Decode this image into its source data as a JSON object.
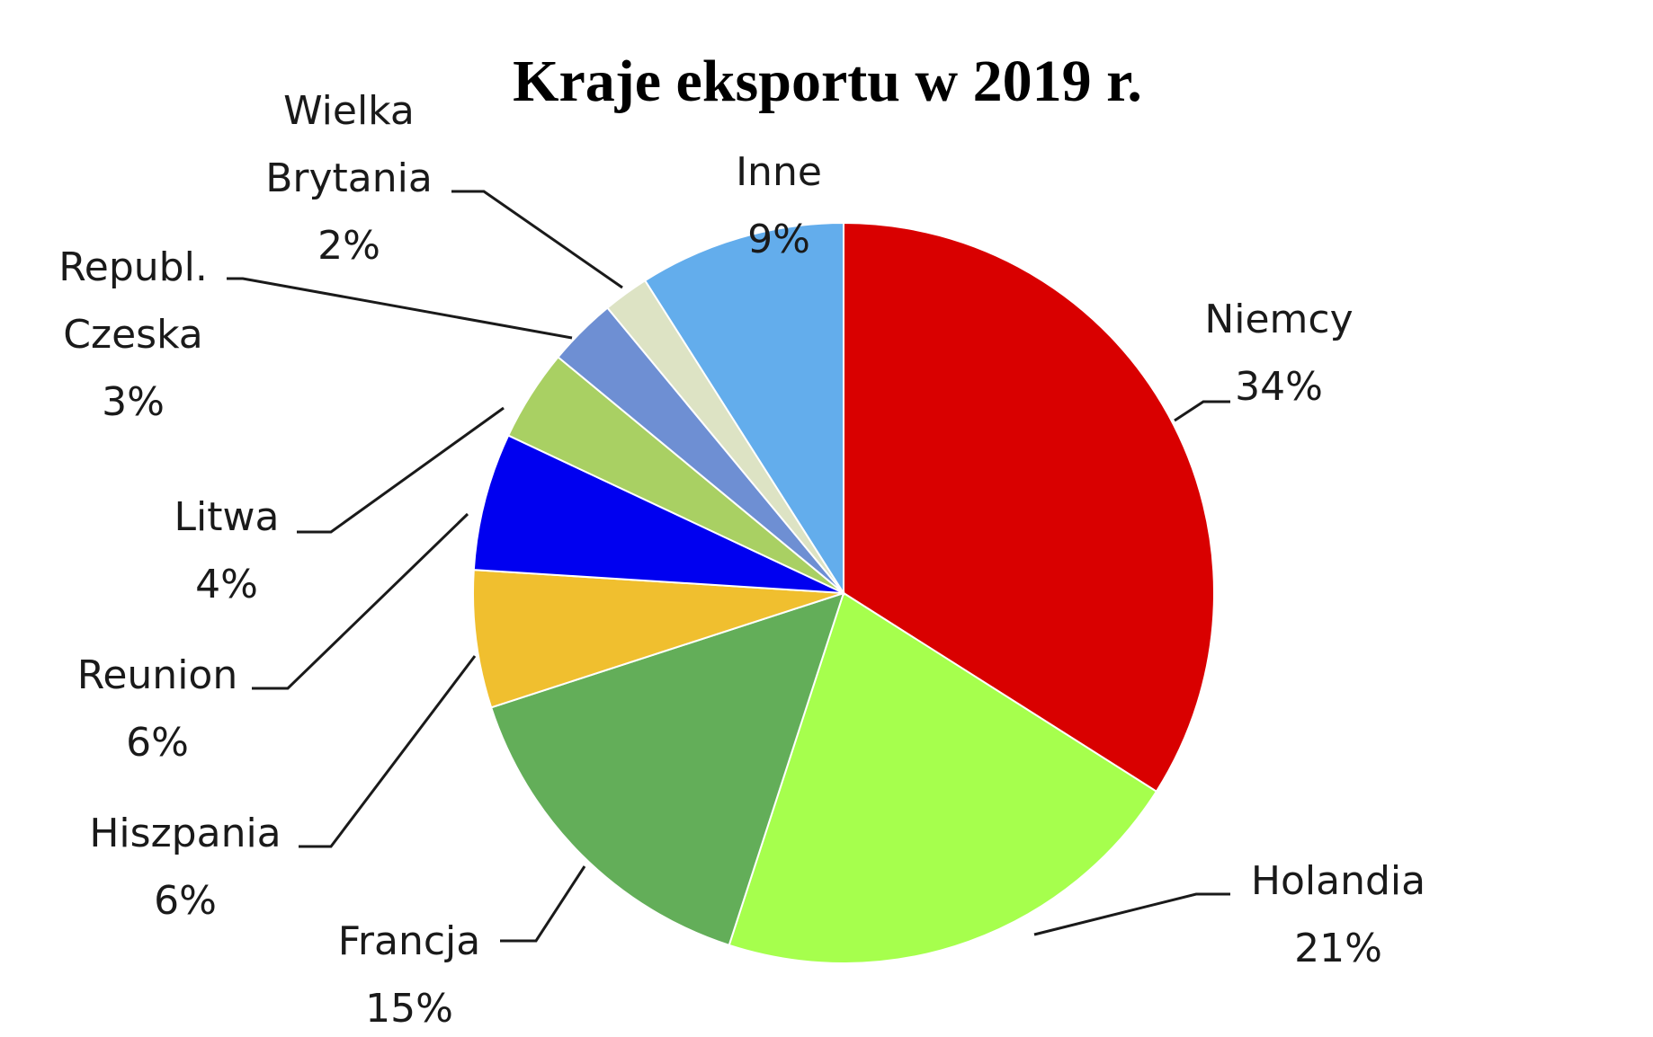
{
  "chart_data": {
    "type": "pie",
    "title": "Kraje eksportu w 2019 r.",
    "slices": [
      {
        "name_lines": [
          "Niemcy"
        ],
        "value_label": "34%",
        "value": 34,
        "color": "#d90000"
      },
      {
        "name_lines": [
          "Holandia"
        ],
        "value_label": "21%",
        "value": 21,
        "color": "#a6ff4d"
      },
      {
        "name_lines": [
          "Francja"
        ],
        "value_label": "15%",
        "value": 15,
        "color": "#63ae59"
      },
      {
        "name_lines": [
          "Hiszpania"
        ],
        "value_label": "6%",
        "value": 6,
        "color": "#f0bf2f"
      },
      {
        "name_lines": [
          "Reunion"
        ],
        "value_label": "6%",
        "value": 6,
        "color": "#0000f0"
      },
      {
        "name_lines": [
          "Litwa"
        ],
        "value_label": "4%",
        "value": 4,
        "color": "#a9d063"
      },
      {
        "name_lines": [
          "Republ.",
          "Czeska"
        ],
        "value_label": "3%",
        "value": 3,
        "color": "#6e8fd3"
      },
      {
        "name_lines": [
          "Wielka",
          "Brytania"
        ],
        "value_label": "2%",
        "value": 2,
        "color": "#dde3c4"
      },
      {
        "name_lines": [
          "Inne"
        ],
        "value_label": "9%",
        "value": 9,
        "color": "#63adec"
      }
    ],
    "start_direction": "12 o'clock",
    "direction": "clockwise",
    "legend": "none"
  }
}
